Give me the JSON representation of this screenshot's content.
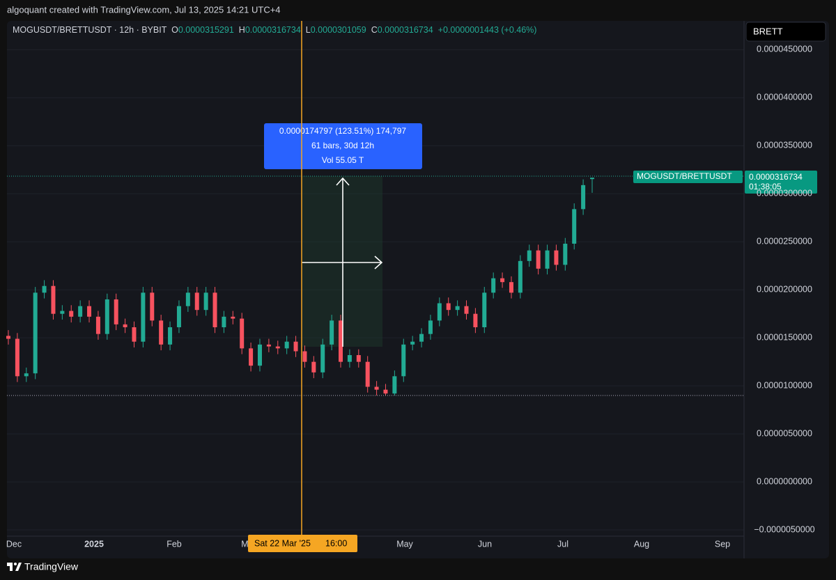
{
  "header": {
    "watermark": "algoquant created with TradingView.com, Jul 13, 2025 14:21 UTC+4",
    "search": "BRETT",
    "brand": "TradingView"
  },
  "chart_data": {
    "type": "candlestick",
    "title": "MOGUSDT/BRETTUSDT · 12h · BYBIT",
    "ohlc_letters": [
      "O",
      "H",
      "L",
      "C"
    ],
    "change": "+0.0000001443 (+0.46%)",
    "price_label": {
      "name": "MOGUSDT/BRETTUSDT",
      "countdown": "01:38:05"
    },
    "measure": [
      "0.0000174797 (123.51%) 174,797",
      "61 bars, 30d 12h",
      "Vol 55.05 T"
    ],
    "crosshair_label": {
      "date": "Sat 22 Mar '25",
      "time": "16:00"
    },
    "x_ticks": [
      "Dec",
      "2025",
      "Feb",
      "Mar",
      "May",
      "Jun",
      "Jul",
      "Aug",
      "Sep"
    ],
    "up_color": "#22ab94",
    "down_color": "#f7525f",
    "grid": true,
    "ylim": [
      -5.65e-06,
      4.8e-05
    ],
    "yticks": [
      {
        "value": -5e-06,
        "label": "−0.0000050000"
      },
      {
        "value": 0,
        "label": "0.0000000000"
      },
      {
        "value": 5e-06,
        "label": "0.0000050000"
      },
      {
        "value": 1e-05,
        "label": "0.0000100000"
      },
      {
        "value": 1.5e-05,
        "label": "0.0000150000"
      },
      {
        "value": 2e-05,
        "label": "0.0000200000"
      },
      {
        "value": 2.5e-05,
        "label": "0.0000250000"
      },
      {
        "value": 3e-05,
        "label": "0.0000300000"
      },
      {
        "value": 3.5e-05,
        "label": "0.0000350000"
      },
      {
        "value": 4e-05,
        "label": "0.0000400000"
      },
      {
        "value": 4.5e-05,
        "label": "0.0000450000"
      }
    ],
    "open": [
      1.52e-05,
      1.49e-05,
      1.1e-05,
      1.13e-05,
      1.97e-05,
      2.04e-05,
      1.75e-05,
      1.78e-05,
      1.72e-05,
      1.83e-05,
      1.72e-05,
      1.54e-05,
      1.9e-05,
      1.64e-05,
      1.61e-05,
      1.46e-05,
      1.97e-05,
      1.68e-05,
      1.43e-05,
      1.61e-05,
      1.83e-05,
      1.97e-05,
      1.79e-05,
      1.97e-05,
      1.61e-05,
      1.72e-05,
      1.7e-05,
      1.39e-05,
      1.21e-05,
      1.43e-05,
      1.41e-05,
      1.39e-05,
      1.46e-05,
      1.36e-05,
      1.25e-05,
      1.14e-05,
      1.43e-05,
      1.68e-05,
      1.25e-05,
      1.32e-05,
      1.25e-05,
      9.9e-06,
      9.6e-06,
      9.2e-06,
      1.1e-05,
      1.43e-05,
      1.46e-05,
      1.54e-05,
      1.68e-05,
      1.86e-05,
      1.79e-05,
      1.83e-05,
      1.75e-05,
      1.61e-05,
      1.97e-05,
      2.12e-05,
      2.08e-05,
      1.97e-05,
      2.3e-05,
      2.41e-05,
      2.22e-05,
      2.41e-05,
      2.26e-05,
      2.48e-05,
      2.84e-05,
      3.15291e-05
    ],
    "high": [
      1.58e-05,
      1.55e-05,
      1.19e-05,
      2.03e-05,
      2.1e-05,
      2.1e-05,
      1.84e-05,
      1.84e-05,
      1.89e-05,
      1.89e-05,
      1.78e-05,
      1.96e-05,
      1.96e-05,
      1.7e-05,
      1.67e-05,
      2.03e-05,
      2.03e-05,
      1.74e-05,
      1.67e-05,
      1.89e-05,
      2.03e-05,
      2.03e-05,
      2.03e-05,
      2.03e-05,
      1.78e-05,
      1.78e-05,
      1.76e-05,
      1.45e-05,
      1.49e-05,
      1.49e-05,
      1.47e-05,
      1.52e-05,
      1.52e-05,
      1.42e-05,
      1.31e-05,
      1.49e-05,
      1.74e-05,
      1.74e-05,
      1.38e-05,
      1.38e-05,
      1.31e-05,
      1.05e-05,
      1.02e-05,
      1.16e-05,
      1.49e-05,
      1.52e-05,
      1.6e-05,
      1.74e-05,
      1.92e-05,
      1.92e-05,
      1.89e-05,
      1.89e-05,
      1.81e-05,
      2.03e-05,
      2.18e-05,
      2.18e-05,
      2.14e-05,
      2.36e-05,
      2.47e-05,
      2.47e-05,
      2.47e-05,
      2.47e-05,
      2.54e-05,
      2.9e-05,
      3.15e-05,
      3.16734e-05
    ],
    "low": [
      1.43e-05,
      1.04e-05,
      1.04e-05,
      1.07e-05,
      1.91e-05,
      1.69e-05,
      1.69e-05,
      1.66e-05,
      1.66e-05,
      1.66e-05,
      1.48e-05,
      1.48e-05,
      1.58e-05,
      1.55e-05,
      1.4e-05,
      1.4e-05,
      1.62e-05,
      1.37e-05,
      1.37e-05,
      1.55e-05,
      1.77e-05,
      1.73e-05,
      1.73e-05,
      1.55e-05,
      1.55e-05,
      1.64e-05,
      1.33e-05,
      1.15e-05,
      1.15e-05,
      1.35e-05,
      1.33e-05,
      1.33e-05,
      1.3e-05,
      1.19e-05,
      1.08e-05,
      1.08e-05,
      1.37e-05,
      1.19e-05,
      1.19e-05,
      1.19e-05,
      9.3e-06,
      9e-06,
      9e-06,
      9e-06,
      1.04e-05,
      1.37e-05,
      1.4e-05,
      1.48e-05,
      1.62e-05,
      1.73e-05,
      1.73e-05,
      1.69e-05,
      1.55e-05,
      1.55e-05,
      1.91e-05,
      2.02e-05,
      1.91e-05,
      1.91e-05,
      2.24e-05,
      2.16e-05,
      2.16e-05,
      2.2e-05,
      2.2e-05,
      2.42e-05,
      2.78e-05,
      3.01059e-05
    ],
    "close": [
      1.49e-05,
      1.1e-05,
      1.13e-05,
      1.97e-05,
      2.04e-05,
      1.75e-05,
      1.78e-05,
      1.72e-05,
      1.83e-05,
      1.72e-05,
      1.54e-05,
      1.9e-05,
      1.64e-05,
      1.61e-05,
      1.46e-05,
      1.97e-05,
      1.68e-05,
      1.43e-05,
      1.61e-05,
      1.83e-05,
      1.97e-05,
      1.79e-05,
      1.97e-05,
      1.61e-05,
      1.72e-05,
      1.7e-05,
      1.39e-05,
      1.21e-05,
      1.43e-05,
      1.41e-05,
      1.39e-05,
      1.46e-05,
      1.36e-05,
      1.25e-05,
      1.14e-05,
      1.43e-05,
      1.68e-05,
      1.25e-05,
      1.32e-05,
      1.25e-05,
      9.9e-06,
      9.6e-06,
      9.2e-06,
      1.1e-05,
      1.43e-05,
      1.46e-05,
      1.54e-05,
      1.68e-05,
      1.86e-05,
      1.79e-05,
      1.83e-05,
      1.75e-05,
      1.61e-05,
      1.97e-05,
      2.12e-05,
      2.08e-05,
      1.97e-05,
      2.3e-05,
      2.41e-05,
      2.22e-05,
      2.41e-05,
      2.26e-05,
      2.48e-05,
      2.84e-05,
      3.09e-05,
      3.16734e-05
    ]
  }
}
